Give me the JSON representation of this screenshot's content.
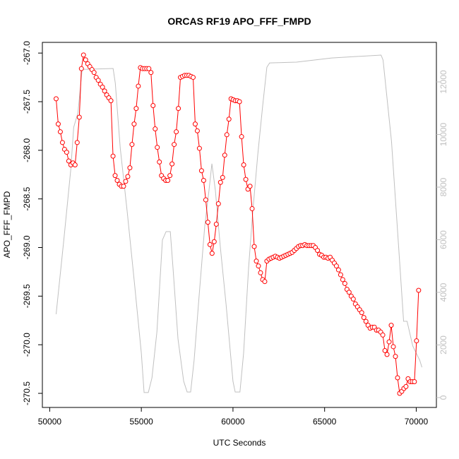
{
  "chart_data": {
    "type": "line",
    "title": "ORCAS RF19 APO_FFF_FMPD",
    "xlabel": "UTC Seconds",
    "ylabel": "APO_FFF_FMPD",
    "xlim": [
      49600,
      71100
    ],
    "xticks": [
      50000,
      55000,
      60000,
      65000,
      70000
    ],
    "ylim": [
      -270.645,
      -266.89
    ],
    "yticks": [
      {
        "value": -267,
        "label": "-267.0"
      },
      -267.5,
      {
        "value": -268,
        "label": "-268.0"
      },
      -268.5,
      {
        "value": -269,
        "label": "-269.0"
      },
      -269.5,
      {
        "value": -270,
        "label": "-270.0"
      },
      -270.5
    ],
    "y2lim": [
      -376,
      13503
    ],
    "y2ticks": [
      0,
      2000,
      4000,
      6000,
      8000,
      10000,
      12000
    ],
    "series": [
      {
        "color": "#ff0000",
        "marker": "circle",
        "x": [
          50350,
          50465,
          50580,
          50695,
          50810,
          50925,
          51040,
          51155,
          51270,
          51385,
          51500,
          51615,
          51730,
          51845,
          51960,
          52075,
          52190,
          52305,
          52420,
          52535,
          52650,
          52765,
          52880,
          52995,
          53110,
          53225,
          53340,
          53455,
          53570,
          53685,
          53800,
          53915,
          54030,
          54145,
          54260,
          54375,
          54490,
          54605,
          54720,
          54835,
          54950,
          55065,
          55180,
          55295,
          55410,
          55525,
          55640,
          55755,
          55870,
          55985,
          56100,
          56215,
          56330,
          56445,
          56560,
          56675,
          56790,
          56905,
          57020,
          57135,
          57250,
          57365,
          57480,
          57595,
          57710,
          57825,
          57940,
          58055,
          58170,
          58285,
          58400,
          58515,
          58630,
          58745,
          58860,
          58975,
          59090,
          59205,
          59320,
          59435,
          59550,
          59665,
          59780,
          59895,
          60010,
          60125,
          60240,
          60355,
          60470,
          60585,
          60700,
          60815,
          60930,
          61045,
          61160,
          61275,
          61390,
          61505,
          61620,
          61735,
          61850,
          61965,
          62080,
          62195,
          62310,
          62425,
          62540,
          62655,
          62770,
          62885,
          63000,
          63115,
          63230,
          63345,
          63460,
          63575,
          63690,
          63805,
          63920,
          64035,
          64150,
          64265,
          64380,
          64495,
          64610,
          64725,
          64840,
          64955,
          65070,
          65185,
          65300,
          65415,
          65530,
          65645,
          65760,
          65875,
          65990,
          66105,
          66220,
          66335,
          66450,
          66565,
          66680,
          66795,
          66910,
          67025,
          67140,
          67255,
          67370,
          67485,
          67600,
          67715,
          67830,
          67945,
          68060,
          68175,
          68290,
          68405,
          68520,
          68635,
          68750,
          68865,
          68980,
          69095,
          69210,
          69325,
          69440,
          69555,
          69670,
          69785,
          69900,
          70015,
          70130
        ],
        "values": [
          -267.47,
          -267.73,
          -267.81,
          -267.92,
          -267.99,
          -268.02,
          -268.11,
          -268.15,
          -268.13,
          -268.15,
          -267.92,
          -267.66,
          -267.16,
          -267.02,
          -267.07,
          -267.11,
          -267.14,
          -267.17,
          -267.2,
          -267.25,
          -267.28,
          -267.32,
          -267.35,
          -267.39,
          -267.43,
          -267.46,
          -267.49,
          -268.06,
          -268.26,
          -268.31,
          -268.35,
          -268.37,
          -268.37,
          -268.32,
          -268.27,
          -268.18,
          -267.94,
          -267.73,
          -267.57,
          -267.34,
          -267.15,
          -267.16,
          -267.16,
          -267.16,
          -267.16,
          -267.2,
          -267.54,
          -267.78,
          -267.97,
          -268.12,
          -268.26,
          -268.29,
          -268.31,
          -268.31,
          -268.26,
          -268.14,
          -267.94,
          -267.81,
          -267.57,
          -267.25,
          -267.24,
          -267.23,
          -267.23,
          -267.23,
          -267.24,
          -267.25,
          -267.73,
          -267.8,
          -267.98,
          -268.21,
          -268.31,
          -268.51,
          -268.74,
          -268.97,
          -269.06,
          -268.94,
          -268.76,
          -268.55,
          -268.33,
          -268.28,
          -268.05,
          -267.84,
          -267.68,
          -267.47,
          -267.48,
          -267.49,
          -267.49,
          -267.5,
          -267.86,
          -268.15,
          -268.3,
          -268.4,
          -268.37,
          -268.6,
          -268.99,
          -269.14,
          -269.19,
          -269.26,
          -269.33,
          -269.35,
          -269.14,
          -269.12,
          -269.11,
          -269.1,
          -269.09,
          -269.1,
          -269.11,
          -269.1,
          -269.09,
          -269.08,
          -269.07,
          -269.06,
          -269.05,
          -269.03,
          -269.01,
          -268.99,
          -268.98,
          -268.98,
          -268.97,
          -268.98,
          -268.98,
          -268.98,
          -268.98,
          -269.0,
          -269.03,
          -269.07,
          -269.08,
          -269.1,
          -269.1,
          -269.11,
          -269.1,
          -269.13,
          -269.16,
          -269.19,
          -269.23,
          -269.28,
          -269.33,
          -269.37,
          -269.43,
          -269.46,
          -269.5,
          -269.53,
          -269.58,
          -269.61,
          -269.64,
          -269.67,
          -269.72,
          -269.76,
          -269.8,
          -269.83,
          -269.82,
          -269.82,
          -269.85,
          -269.85,
          -269.87,
          -269.9,
          -270.06,
          -270.1,
          -269.97,
          -269.8,
          -270.02,
          -270.12,
          -270.34,
          -270.5,
          -270.48,
          -270.45,
          -270.43,
          -270.35,
          -270.38,
          -270.38,
          -270.38,
          -269.96,
          -269.44
        ]
      },
      {
        "color": "#c0c0c0",
        "axis": "y2",
        "x": [
          50350,
          50770,
          51150,
          51310,
          51540,
          51770,
          52120,
          53460,
          53580,
          53850,
          54230,
          54620,
          55000,
          55150,
          55380,
          55580,
          55850,
          56150,
          56350,
          56580,
          56730,
          57000,
          57310,
          57500,
          57690,
          57880,
          58150,
          58460,
          58690,
          58850,
          59040,
          59310,
          59620,
          60000,
          60120,
          60380,
          60580,
          60850,
          61080,
          61350,
          61620,
          61850,
          62000,
          63460,
          65380,
          68080,
          68190,
          68650,
          69040,
          69310,
          69500,
          69810,
          70000,
          70190,
          70310
        ],
        "values": [
          3170,
          5990,
          8670,
          10280,
          10820,
          12480,
          12480,
          12510,
          11950,
          9480,
          7060,
          4380,
          1690,
          190,
          190,
          750,
          2500,
          5990,
          6310,
          6310,
          4910,
          2230,
          620,
          210,
          210,
          1420,
          3840,
          6520,
          7870,
          8890,
          7870,
          5720,
          3570,
          620,
          210,
          210,
          1690,
          4910,
          7060,
          9210,
          11090,
          12560,
          12720,
          12750,
          12910,
          13020,
          12830,
          9740,
          5720,
          2900,
          2900,
          1960,
          1690,
          1420,
          1150
        ]
      }
    ]
  }
}
